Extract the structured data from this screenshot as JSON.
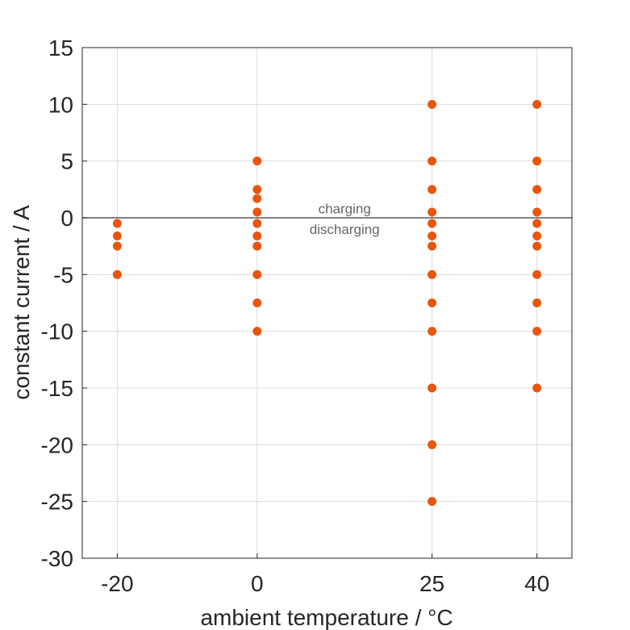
{
  "chart_data": {
    "type": "scatter",
    "title": "",
    "xlabel": "ambient temperature / °C",
    "ylabel": "constant current / A",
    "x_ticks": [
      -20,
      0,
      25,
      40
    ],
    "x_tick_labels": [
      "-20",
      "0",
      "25",
      "40"
    ],
    "y_ticks": [
      -30,
      -25,
      -20,
      -15,
      -10,
      -5,
      0,
      5,
      10,
      15
    ],
    "y_tick_labels": [
      "-30",
      "-25",
      "-20",
      "-15",
      "-10",
      "-5",
      "0",
      "5",
      "10",
      "15"
    ],
    "xlim": [
      -25,
      45
    ],
    "ylim": [
      -30,
      15
    ],
    "grid": true,
    "reference_line": {
      "y": 0,
      "color": "#595959"
    },
    "annotations": [
      {
        "text": "charging",
        "x": 12.5,
        "y": 0.8
      },
      {
        "text": "discharging",
        "x": 12.5,
        "y": -1
      }
    ],
    "series": [
      {
        "color": "#e8560e",
        "points": [
          [
            -20,
            -0.5
          ],
          [
            -20,
            -1.6
          ],
          [
            -20,
            -2.5
          ],
          [
            -20,
            -5
          ],
          [
            0,
            5
          ],
          [
            0,
            2.5
          ],
          [
            0,
            1.7
          ],
          [
            0,
            0.5
          ],
          [
            0,
            -0.5
          ],
          [
            0,
            -1.6
          ],
          [
            0,
            -2.5
          ],
          [
            0,
            -5
          ],
          [
            0,
            -7.5
          ],
          [
            0,
            -10
          ],
          [
            25,
            10
          ],
          [
            25,
            5
          ],
          [
            25,
            2.5
          ],
          [
            25,
            0.5
          ],
          [
            25,
            -0.5
          ],
          [
            25,
            -1.6
          ],
          [
            25,
            -2.5
          ],
          [
            25,
            -5
          ],
          [
            25,
            -7.5
          ],
          [
            25,
            -10
          ],
          [
            25,
            -15
          ],
          [
            25,
            -20
          ],
          [
            25,
            -25
          ],
          [
            40,
            10
          ],
          [
            40,
            5
          ],
          [
            40,
            2.5
          ],
          [
            40,
            0.5
          ],
          [
            40,
            -0.5
          ],
          [
            40,
            -1.6
          ],
          [
            40,
            -2.5
          ],
          [
            40,
            -5
          ],
          [
            40,
            -7.5
          ],
          [
            40,
            -10
          ],
          [
            40,
            -15
          ]
        ]
      }
    ]
  }
}
